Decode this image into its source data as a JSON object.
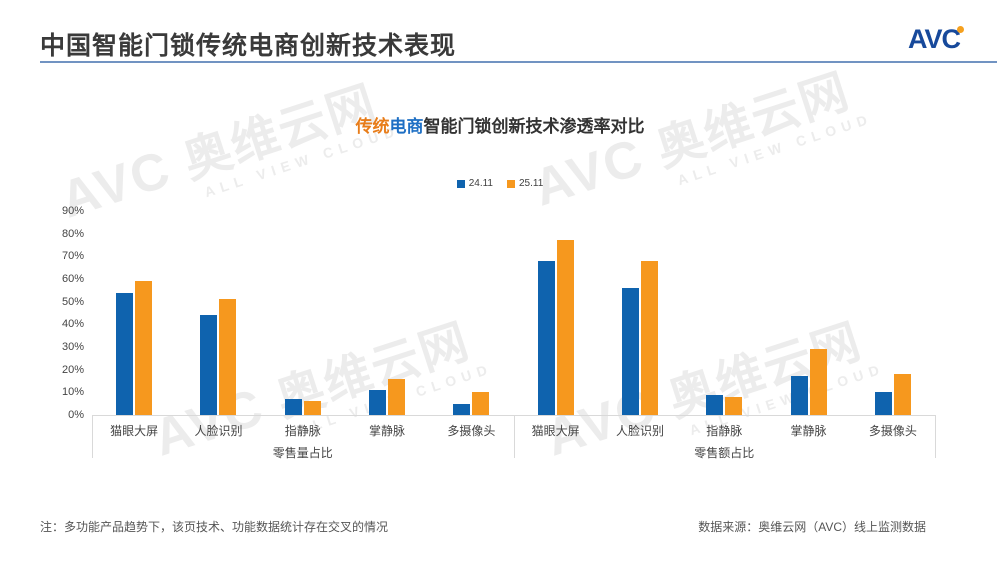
{
  "header": {
    "title": "中国智能门锁传统电商创新技术表现",
    "logo_text": "AVC"
  },
  "watermark": {
    "avc": "AVC",
    "cn": "奥维云网",
    "sub": "ALL VIEW CLOUD"
  },
  "chart_data": {
    "type": "bar",
    "title": {
      "full": "传统电商智能门锁创新技术渗透率对比",
      "part_orange": "传统",
      "part_blue": "电商",
      "part_rest": "智能门锁创新技术渗透率对比"
    },
    "accent_orange": "#e87d1a",
    "accent_blue": "#1e6fc4",
    "legend": [
      {
        "name": "24.11",
        "color": "#0f63ae"
      },
      {
        "name": "25.11",
        "color": "#f6981e"
      }
    ],
    "ylim": [
      0,
      90
    ],
    "ytick_step": 10,
    "ytick_suffix": "%",
    "grid": false,
    "legend_position": "top-center",
    "groups": [
      {
        "label": "零售量占比",
        "categories": [
          "猫眼大屏",
          "人脸识别",
          "指静脉",
          "掌静脉",
          "多摄像头"
        ],
        "series": [
          {
            "name": "24.11",
            "values": [
              54,
              44,
              7,
              11,
              5
            ]
          },
          {
            "name": "25.11",
            "values": [
              59,
              51,
              6,
              16,
              10
            ]
          }
        ]
      },
      {
        "label": "零售额占比",
        "categories": [
          "猫眼大屏",
          "人脸识别",
          "指静脉",
          "掌静脉",
          "多摄像头"
        ],
        "series": [
          {
            "name": "24.11",
            "values": [
              68,
              56,
              9,
              17,
              10
            ]
          },
          {
            "name": "25.11",
            "values": [
              77,
              68,
              8,
              29,
              18
            ]
          }
        ]
      }
    ]
  },
  "footer": {
    "note": "注：多功能产品趋势下，该页技术、功能数据统计存在交叉的情况",
    "source": "数据来源：奥维云网（AVC）线上监测数据"
  }
}
